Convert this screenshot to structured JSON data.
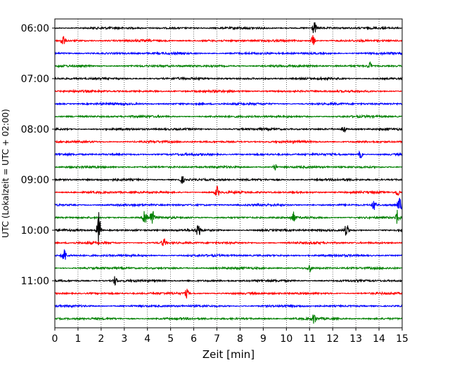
{
  "chart_data": {
    "type": "line",
    "title": "",
    "xlabel": "Zeit  [min]",
    "ylabel": "UTC (Lokalzeit = UTC + 02:00)",
    "x_range": [
      0,
      15
    ],
    "x_ticks": [
      "0",
      "1",
      "2",
      "3",
      "4",
      "5",
      "6",
      "7",
      "8",
      "9",
      "10",
      "11",
      "12",
      "13",
      "14",
      "15"
    ],
    "y_ticks": [
      "06:00",
      "07:00",
      "08:00",
      "09:00",
      "10:00",
      "11:00"
    ],
    "grid": "vertical dotted lines at each minute",
    "color_cycle": [
      "#000000",
      "#ff0000",
      "#0000ff",
      "#008000"
    ],
    "traces": [
      {
        "start": "06:00",
        "events": [
          {
            "x": 11.2,
            "amp": 0.5
          }
        ]
      },
      {
        "start": "06:15",
        "events": [
          {
            "x": 0.35,
            "amp": 0.45
          },
          {
            "x": 11.15,
            "amp": 0.45
          }
        ]
      },
      {
        "start": "06:30",
        "events": []
      },
      {
        "start": "06:45",
        "events": [
          {
            "x": 13.6,
            "amp": 0.3
          }
        ]
      },
      {
        "start": "07:00",
        "events": []
      },
      {
        "start": "07:15",
        "events": []
      },
      {
        "start": "07:30",
        "events": []
      },
      {
        "start": "07:45",
        "events": []
      },
      {
        "start": "08:00",
        "events": [
          {
            "x": 12.5,
            "amp": 0.3
          }
        ]
      },
      {
        "start": "08:15",
        "events": []
      },
      {
        "start": "08:30",
        "events": [
          {
            "x": 13.2,
            "amp": 0.3
          }
        ]
      },
      {
        "start": "08:45",
        "events": [
          {
            "x": 9.5,
            "amp": 0.3
          }
        ]
      },
      {
        "start": "09:00",
        "events": [
          {
            "x": 5.5,
            "amp": 0.3
          }
        ]
      },
      {
        "start": "09:15",
        "events": [
          {
            "x": 7.0,
            "amp": 0.45
          },
          {
            "x": 14.8,
            "amp": 0.3
          }
        ]
      },
      {
        "start": "09:30",
        "events": [
          {
            "x": 13.8,
            "amp": 0.5
          },
          {
            "x": 14.9,
            "amp": 0.6
          }
        ]
      },
      {
        "start": "09:45",
        "events": [
          {
            "x": 3.9,
            "amp": 0.9
          },
          {
            "x": 4.2,
            "amp": 0.7
          },
          {
            "x": 10.3,
            "amp": 0.4
          },
          {
            "x": 14.8,
            "amp": 0.6
          }
        ]
      },
      {
        "start": "10:00",
        "events": [
          {
            "x": 1.9,
            "amp": 1.4
          },
          {
            "x": 6.2,
            "amp": 0.6
          },
          {
            "x": 12.6,
            "amp": 0.5
          }
        ]
      },
      {
        "start": "10:15",
        "events": [
          {
            "x": 4.7,
            "amp": 0.35
          }
        ]
      },
      {
        "start": "10:30",
        "events": [
          {
            "x": 0.4,
            "amp": 0.6
          }
        ]
      },
      {
        "start": "10:45",
        "events": [
          {
            "x": 11.0,
            "amp": 0.3
          }
        ]
      },
      {
        "start": "11:00",
        "events": [
          {
            "x": 2.6,
            "amp": 0.35
          }
        ]
      },
      {
        "start": "11:15",
        "events": [
          {
            "x": 5.7,
            "amp": 0.3
          }
        ]
      },
      {
        "start": "11:30",
        "events": []
      },
      {
        "start": "11:45",
        "events": [
          {
            "x": 11.2,
            "amp": 0.4
          }
        ]
      }
    ]
  }
}
